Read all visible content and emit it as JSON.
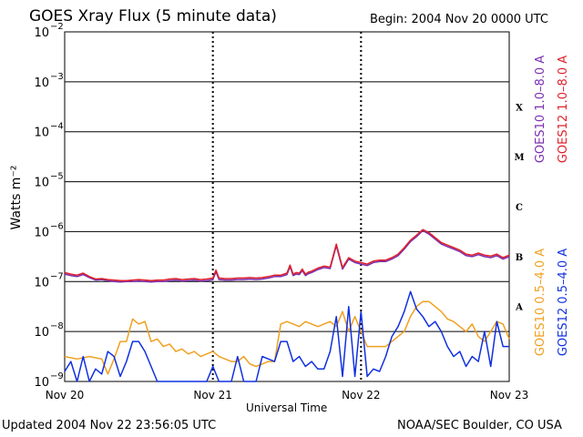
{
  "header": {
    "title": "GOES Xray Flux (5 minute data)",
    "begin": "Begin:  2004 Nov 20 0000 UTC"
  },
  "footer": {
    "updated": "Updated 2004 Nov 22 23:56:05 UTC",
    "credit": "NOAA/SEC Boulder, CO USA"
  },
  "chart_data": {
    "type": "line",
    "title": "GOES Xray Flux (5 minute data)",
    "xlabel": "Universal Time",
    "ylabel": "Watts m⁻²",
    "yscale": "log",
    "ylim": [
      1e-09,
      0.01
    ],
    "xlim": [
      0,
      72
    ],
    "x_ticks": [
      {
        "label": "Nov 20",
        "value": 0
      },
      {
        "label": "Nov 21",
        "value": 24
      },
      {
        "label": "Nov 22",
        "value": 48
      },
      {
        "label": "Nov 23",
        "value": 72
      }
    ],
    "y_ticks": [
      {
        "base": "10",
        "exp": "−9",
        "value": -9
      },
      {
        "base": "10",
        "exp": "−8",
        "value": -8
      },
      {
        "base": "10",
        "exp": "−7",
        "value": -7
      },
      {
        "base": "10",
        "exp": "−6",
        "value": -6
      },
      {
        "base": "10",
        "exp": "−5",
        "value": -5
      },
      {
        "base": "10",
        "exp": "−4",
        "value": -4
      },
      {
        "base": "10",
        "exp": "−3",
        "value": -3
      },
      {
        "base": "10",
        "exp": "−2",
        "value": -2
      }
    ],
    "flare_classes": [
      {
        "label": "A",
        "value": -7.5
      },
      {
        "label": "B",
        "value": -6.5
      },
      {
        "label": "C",
        "value": -5.5
      },
      {
        "label": "M",
        "value": -4.5
      },
      {
        "label": "X",
        "value": -3.5
      }
    ],
    "grid": {
      "horizontal": true,
      "day_dividers": true
    },
    "colors": {
      "goes10_long": "#7a2fb0",
      "goes12_long": "#e0202a",
      "goes10_short": "#f0a020",
      "goes12_short": "#1030e0"
    },
    "series": [
      {
        "name": "GOES10 1.0–8.0 A",
        "color": "#7a2fb0",
        "x": [
          0,
          1,
          2,
          3,
          4,
          5,
          6,
          7,
          8,
          9,
          10,
          11,
          12,
          13,
          14,
          15,
          16,
          17,
          18,
          19,
          20,
          21,
          22,
          23,
          24,
          24.5,
          25,
          26,
          27,
          28,
          29,
          30,
          31,
          32,
          33,
          34,
          35,
          36,
          36.5,
          37,
          37.5,
          38,
          38.5,
          39,
          39.5,
          40,
          41,
          42,
          43,
          44,
          45,
          46,
          47,
          48,
          49,
          50,
          51,
          52,
          53,
          54,
          55,
          56,
          57,
          58,
          59,
          60,
          61,
          62,
          63,
          64,
          65,
          66,
          67,
          68,
          69,
          70,
          71,
          72
        ],
        "log_y": [
          -6.85,
          -6.88,
          -6.9,
          -6.86,
          -6.92,
          -6.97,
          -6.96,
          -6.98,
          -7.0,
          -7.01,
          -7.0,
          -7.0,
          -6.99,
          -7.0,
          -7.01,
          -7.0,
          -7.0,
          -6.98,
          -6.97,
          -6.99,
          -6.98,
          -6.97,
          -6.99,
          -6.98,
          -6.96,
          -6.8,
          -6.96,
          -6.97,
          -6.97,
          -6.96,
          -6.96,
          -6.95,
          -6.96,
          -6.95,
          -6.93,
          -6.9,
          -6.9,
          -6.86,
          -6.7,
          -6.88,
          -6.85,
          -6.86,
          -6.78,
          -6.88,
          -6.84,
          -6.82,
          -6.76,
          -6.72,
          -6.74,
          -6.28,
          -6.75,
          -6.55,
          -6.62,
          -6.65,
          -6.68,
          -6.62,
          -6.6,
          -6.6,
          -6.55,
          -6.48,
          -6.35,
          -6.2,
          -6.1,
          -5.98,
          -6.05,
          -6.15,
          -6.25,
          -6.3,
          -6.35,
          -6.4,
          -6.48,
          -6.5,
          -6.46,
          -6.5,
          -6.52,
          -6.48,
          -6.55,
          -6.5,
          -6.55
        ]
      },
      {
        "name": "GOES12 1.0–8.0 A",
        "color": "#e0202a",
        "x": [
          0,
          1,
          2,
          3,
          4,
          5,
          6,
          7,
          8,
          9,
          10,
          11,
          12,
          13,
          14,
          15,
          16,
          17,
          18,
          19,
          20,
          21,
          22,
          23,
          24,
          24.5,
          25,
          26,
          27,
          28,
          29,
          30,
          31,
          32,
          33,
          34,
          35,
          36,
          36.5,
          37,
          37.5,
          38,
          38.5,
          39,
          39.5,
          40,
          41,
          42,
          43,
          44,
          45,
          46,
          47,
          48,
          49,
          50,
          51,
          52,
          53,
          54,
          55,
          56,
          57,
          58,
          59,
          60,
          61,
          62,
          63,
          64,
          65,
          66,
          67,
          68,
          69,
          70,
          71,
          72
        ],
        "log_y": [
          -6.82,
          -6.85,
          -6.87,
          -6.83,
          -6.9,
          -6.95,
          -6.94,
          -6.96,
          -6.97,
          -6.98,
          -6.98,
          -6.97,
          -6.96,
          -6.97,
          -6.98,
          -6.97,
          -6.97,
          -6.95,
          -6.94,
          -6.96,
          -6.95,
          -6.94,
          -6.96,
          -6.95,
          -6.93,
          -6.77,
          -6.93,
          -6.94,
          -6.94,
          -6.93,
          -6.93,
          -6.92,
          -6.93,
          -6.92,
          -6.9,
          -6.87,
          -6.87,
          -6.83,
          -6.67,
          -6.85,
          -6.82,
          -6.83,
          -6.75,
          -6.85,
          -6.81,
          -6.79,
          -6.73,
          -6.69,
          -6.71,
          -6.25,
          -6.72,
          -6.52,
          -6.59,
          -6.62,
          -6.65,
          -6.59,
          -6.57,
          -6.57,
          -6.52,
          -6.45,
          -6.32,
          -6.17,
          -6.07,
          -5.96,
          -6.02,
          -6.12,
          -6.22,
          -6.27,
          -6.32,
          -6.37,
          -6.45,
          -6.47,
          -6.43,
          -6.47,
          -6.49,
          -6.45,
          -6.52,
          -6.47,
          -6.52
        ]
      },
      {
        "name": "GOES10 0.5–4.0 A",
        "color": "#f0a020",
        "x": [
          0,
          2,
          4,
          6,
          7,
          8,
          9,
          10,
          11,
          12,
          13,
          14,
          15,
          16,
          17,
          18,
          19,
          20,
          21,
          22,
          23,
          24,
          25,
          26,
          27,
          28,
          29,
          30,
          31,
          32,
          33,
          34,
          35,
          36,
          37,
          38,
          39,
          40,
          41,
          42,
          43,
          44,
          45,
          46,
          47,
          48,
          49,
          50,
          51,
          52,
          53,
          54,
          55,
          56,
          57,
          58,
          59,
          60,
          61,
          62,
          63,
          64,
          65,
          66,
          67,
          68,
          69,
          70,
          71,
          72
        ],
        "log_y": [
          -8.5,
          -8.55,
          -8.5,
          -8.55,
          -8.85,
          -8.55,
          -8.2,
          -8.2,
          -7.75,
          -7.85,
          -7.8,
          -8.2,
          -8.15,
          -8.3,
          -8.25,
          -8.4,
          -8.35,
          -8.45,
          -8.4,
          -8.5,
          -8.45,
          -8.4,
          -8.5,
          -8.55,
          -8.6,
          -8.6,
          -8.5,
          -8.65,
          -8.7,
          -8.65,
          -8.6,
          -8.6,
          -7.85,
          -7.8,
          -7.85,
          -7.9,
          -7.8,
          -7.85,
          -7.9,
          -7.85,
          -7.8,
          -7.9,
          -7.6,
          -8.0,
          -7.7,
          -8.0,
          -8.3,
          -8.3,
          -8.3,
          -8.3,
          -8.2,
          -8.1,
          -8.0,
          -7.7,
          -7.5,
          -7.4,
          -7.4,
          -7.5,
          -7.6,
          -7.75,
          -7.8,
          -7.9,
          -8.0,
          -7.85,
          -8.1,
          -8.2,
          -8.0,
          -7.8,
          -7.85,
          -8.15
        ]
      },
      {
        "name": "GOES12 0.5–4.0 A",
        "color": "#1030e0",
        "x": [
          0,
          1,
          2,
          3,
          4,
          5,
          6,
          7,
          8,
          9,
          10,
          11,
          12,
          13,
          14,
          15,
          16,
          17,
          18,
          19,
          20,
          21,
          22,
          23,
          24,
          25,
          26,
          27,
          28,
          29,
          30,
          31,
          32,
          33,
          34,
          35,
          36,
          37,
          38,
          39,
          40,
          41,
          42,
          43,
          44,
          45,
          46,
          47,
          48,
          49,
          50,
          51,
          52,
          53,
          54,
          55,
          56,
          57,
          58,
          59,
          60,
          61,
          62,
          63,
          64,
          65,
          66,
          67,
          68,
          69,
          70,
          71,
          72
        ],
        "log_y": [
          -8.8,
          -8.6,
          -9.0,
          -8.5,
          -9.0,
          -8.75,
          -8.85,
          -8.4,
          -8.5,
          -8.9,
          -8.6,
          -8.2,
          -8.2,
          -8.4,
          -8.7,
          -9.0,
          -9.0,
          -9.0,
          -9.0,
          -9.0,
          -9.0,
          -9.0,
          -9.0,
          -9.0,
          -8.7,
          -9.0,
          -9.0,
          -9.0,
          -8.5,
          -9.0,
          -9.0,
          -9.0,
          -8.5,
          -8.55,
          -8.6,
          -8.2,
          -8.2,
          -8.6,
          -8.5,
          -8.7,
          -8.6,
          -8.75,
          -8.75,
          -8.4,
          -7.7,
          -8.9,
          -7.5,
          -8.9,
          -7.6,
          -8.9,
          -8.75,
          -8.8,
          -8.5,
          -8.1,
          -7.9,
          -7.6,
          -7.2,
          -7.55,
          -7.7,
          -7.9,
          -7.8,
          -8.0,
          -8.3,
          -8.5,
          -8.4,
          -8.7,
          -8.5,
          -8.6,
          -8.0,
          -8.7,
          -7.8,
          -8.3,
          -8.3
        ]
      }
    ]
  }
}
